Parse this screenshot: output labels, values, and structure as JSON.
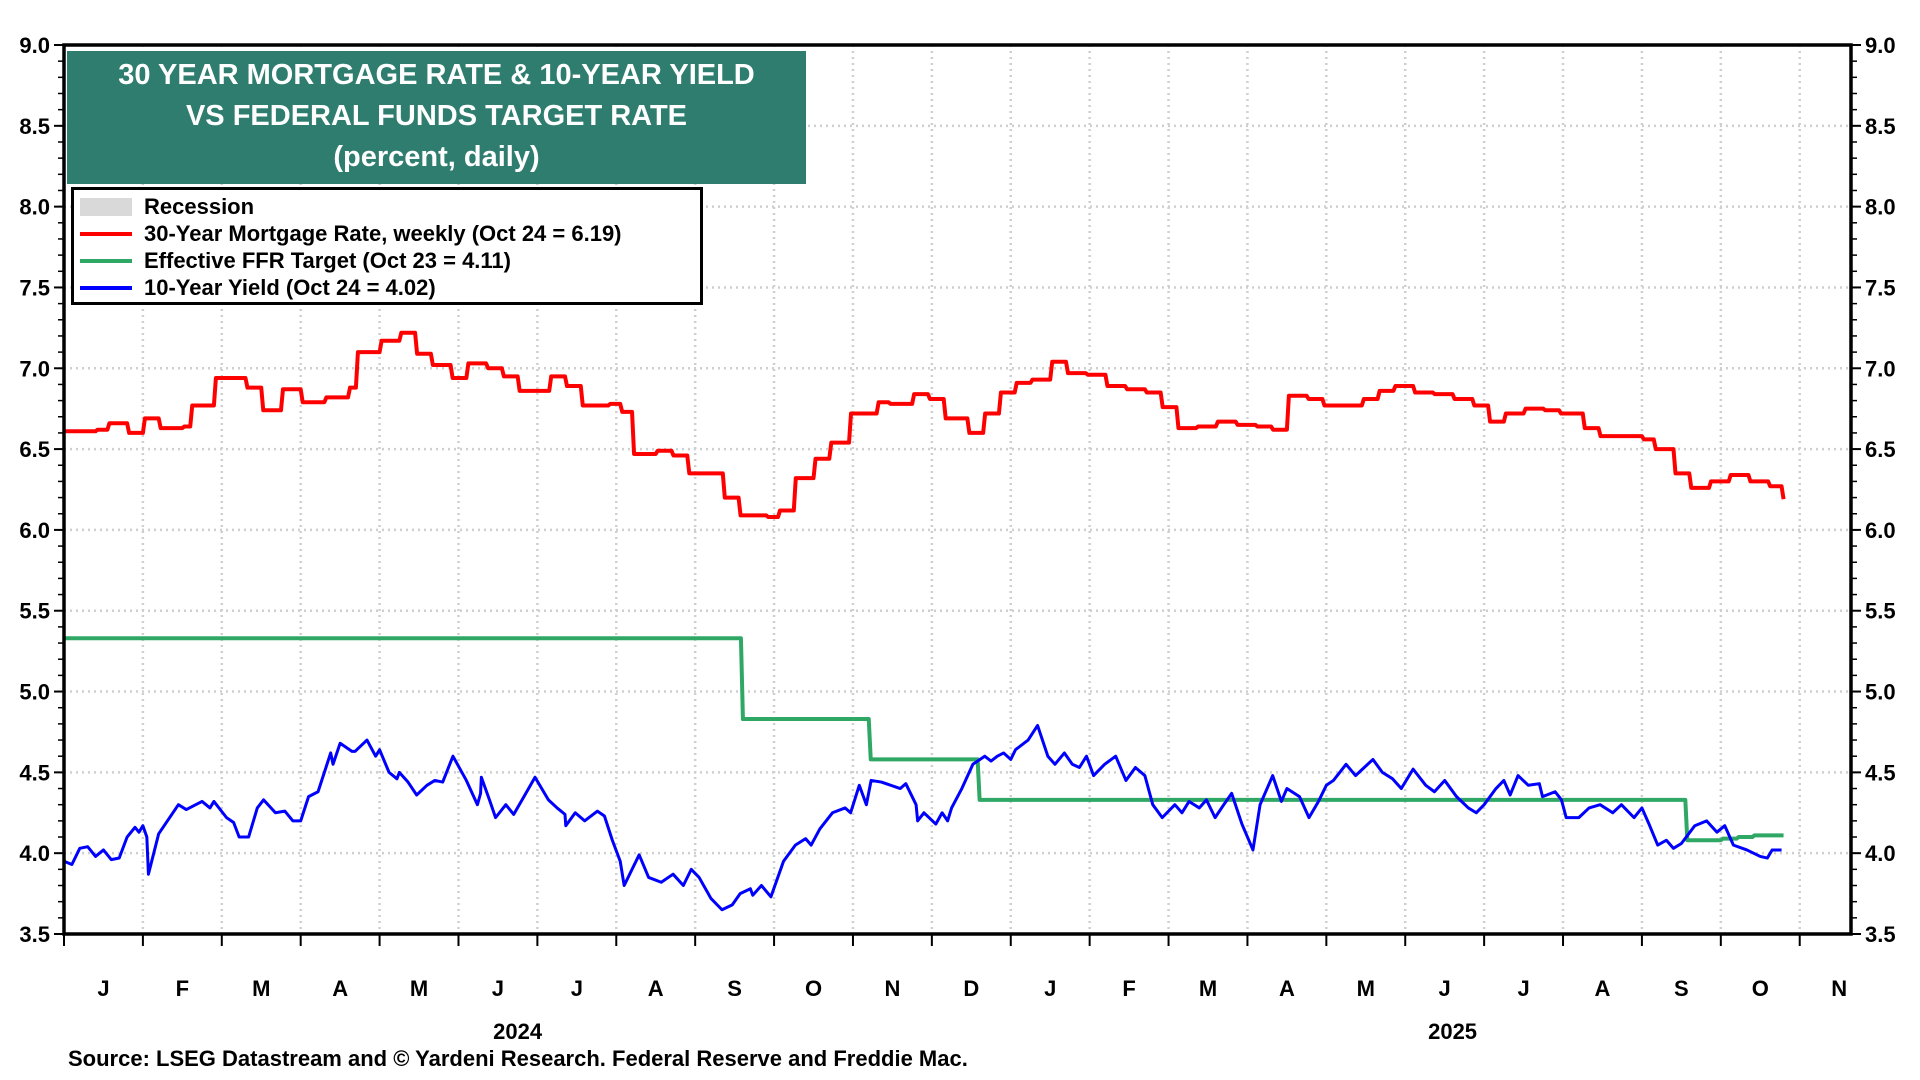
{
  "chart_data": {
    "type": "line",
    "title": [
      "30 YEAR MORTGAGE RATE & 10-YEAR YIELD",
      "VS FEDERAL FUNDS TARGET RATE",
      "(percent, daily)"
    ],
    "x_unit": "months since Jan 2024",
    "xlim": [
      0,
      22.65
    ],
    "ylim": [
      3.5,
      9.0
    ],
    "y_ticks": [
      "3.5",
      "4.0",
      "4.5",
      "5.0",
      "5.5",
      "6.0",
      "6.5",
      "7.0",
      "7.5",
      "8.0",
      "8.5",
      "9.0"
    ],
    "x_month_labels": [
      "J",
      "F",
      "M",
      "A",
      "M",
      "J",
      "J",
      "A",
      "S",
      "O",
      "N",
      "D",
      "J",
      "F",
      "M",
      "A",
      "M",
      "J",
      "J",
      "A",
      "S",
      "O",
      "N"
    ],
    "x_year_labels": [
      {
        "label": "2024",
        "at": 5.75
      },
      {
        "label": "2025",
        "at": 17.6
      }
    ],
    "grid": true,
    "legend_placement": "top-left",
    "legend": [
      {
        "label": "Recession",
        "kind": "area",
        "color": "#d9d9d9"
      },
      {
        "label": "30-Year Mortgage Rate, weekly (Oct 24 = 6.19)",
        "color": "#ff0000"
      },
      {
        "label": "Effective FFR Target (Oct 23 = 4.11)",
        "color": "#2fa866"
      },
      {
        "label": "10-Year Yield (Oct 24 = 4.02)",
        "color": "#0000ff"
      }
    ],
    "series": [
      {
        "name": "30-Year Mortgage Rate, weekly",
        "color": "#ff0000",
        "step": true,
        "points": [
          [
            0,
            6.61
          ],
          [
            0.4,
            6.62
          ],
          [
            0.55,
            6.66
          ],
          [
            0.8,
            6.6
          ],
          [
            1.0,
            6.69
          ],
          [
            1.2,
            6.63
          ],
          [
            1.5,
            6.64
          ],
          [
            1.6,
            6.77
          ],
          [
            1.9,
            6.94
          ],
          [
            2.3,
            6.88
          ],
          [
            2.5,
            6.74
          ],
          [
            2.75,
            6.87
          ],
          [
            3.0,
            6.79
          ],
          [
            3.3,
            6.82
          ],
          [
            3.6,
            6.88
          ],
          [
            3.7,
            7.1
          ],
          [
            4.0,
            7.17
          ],
          [
            4.25,
            7.22
          ],
          [
            4.45,
            7.09
          ],
          [
            4.65,
            7.02
          ],
          [
            4.9,
            6.94
          ],
          [
            5.1,
            7.03
          ],
          [
            5.35,
            7.0
          ],
          [
            5.55,
            6.95
          ],
          [
            5.75,
            6.86
          ],
          [
            6.15,
            6.95
          ],
          [
            6.35,
            6.89
          ],
          [
            6.55,
            6.77
          ],
          [
            6.9,
            6.78
          ],
          [
            7.05,
            6.73
          ],
          [
            7.2,
            6.47
          ],
          [
            7.5,
            6.49
          ],
          [
            7.7,
            6.46
          ],
          [
            7.9,
            6.35
          ],
          [
            8.35,
            6.2
          ],
          [
            8.55,
            6.09
          ],
          [
            8.9,
            6.08
          ],
          [
            9.05,
            6.12
          ],
          [
            9.25,
            6.32
          ],
          [
            9.5,
            6.44
          ],
          [
            9.7,
            6.54
          ],
          [
            9.95,
            6.72
          ],
          [
            10.3,
            6.79
          ],
          [
            10.45,
            6.78
          ],
          [
            10.75,
            6.84
          ],
          [
            10.95,
            6.81
          ],
          [
            11.15,
            6.69
          ],
          [
            11.45,
            6.6
          ],
          [
            11.65,
            6.72
          ],
          [
            11.85,
            6.85
          ],
          [
            12.05,
            6.91
          ],
          [
            12.25,
            6.93
          ],
          [
            12.5,
            7.04
          ],
          [
            12.7,
            6.97
          ],
          [
            12.95,
            6.96
          ],
          [
            13.2,
            6.89
          ],
          [
            13.45,
            6.87
          ],
          [
            13.7,
            6.85
          ],
          [
            13.9,
            6.76
          ],
          [
            14.1,
            6.63
          ],
          [
            14.35,
            6.64
          ],
          [
            14.6,
            6.67
          ],
          [
            14.85,
            6.65
          ],
          [
            15.1,
            6.64
          ],
          [
            15.3,
            6.62
          ],
          [
            15.5,
            6.83
          ],
          [
            15.75,
            6.81
          ],
          [
            15.95,
            6.77
          ],
          [
            16.45,
            6.81
          ],
          [
            16.65,
            6.86
          ],
          [
            16.85,
            6.89
          ],
          [
            17.1,
            6.85
          ],
          [
            17.35,
            6.84
          ],
          [
            17.6,
            6.81
          ],
          [
            17.85,
            6.77
          ],
          [
            18.05,
            6.67
          ],
          [
            18.25,
            6.72
          ],
          [
            18.5,
            6.75
          ],
          [
            18.75,
            6.74
          ],
          [
            18.95,
            6.72
          ],
          [
            19.25,
            6.63
          ],
          [
            19.45,
            6.58
          ],
          [
            20.0,
            6.56
          ],
          [
            20.15,
            6.5
          ],
          [
            20.4,
            6.35
          ],
          [
            20.6,
            6.26
          ],
          [
            20.85,
            6.3
          ],
          [
            21.1,
            6.34
          ],
          [
            21.35,
            6.3
          ],
          [
            21.6,
            6.27
          ],
          [
            21.77,
            6.19
          ]
        ]
      },
      {
        "name": "Effective FFR Target",
        "color": "#2fa866",
        "step": true,
        "points": [
          [
            0,
            5.33
          ],
          [
            8.58,
            4.83
          ],
          [
            10.2,
            4.58
          ],
          [
            11.58,
            4.33
          ],
          [
            20.55,
            4.08
          ],
          [
            21.0,
            4.09
          ],
          [
            21.2,
            4.1
          ],
          [
            21.4,
            4.11
          ],
          [
            21.77,
            4.11
          ]
        ]
      },
      {
        "name": "10-Year Yield",
        "color": "#0000ff",
        "step": false,
        "points": [
          [
            0,
            3.95
          ],
          [
            0.1,
            3.93
          ],
          [
            0.2,
            4.03
          ],
          [
            0.3,
            4.04
          ],
          [
            0.4,
            3.98
          ],
          [
            0.5,
            4.02
          ],
          [
            0.6,
            3.96
          ],
          [
            0.7,
            3.97
          ],
          [
            0.8,
            4.1
          ],
          [
            0.9,
            4.16
          ],
          [
            0.95,
            4.13
          ],
          [
            1.0,
            4.17
          ],
          [
            1.05,
            4.1
          ],
          [
            1.07,
            3.87
          ],
          [
            1.2,
            4.12
          ],
          [
            1.45,
            4.3
          ],
          [
            1.55,
            4.27
          ],
          [
            1.75,
            4.32
          ],
          [
            1.85,
            4.28
          ],
          [
            1.9,
            4.32
          ],
          [
            2.06,
            4.22
          ],
          [
            2.15,
            4.19
          ],
          [
            2.22,
            4.1
          ],
          [
            2.34,
            4.1
          ],
          [
            2.45,
            4.28
          ],
          [
            2.53,
            4.33
          ],
          [
            2.68,
            4.25
          ],
          [
            2.8,
            4.26
          ],
          [
            2.9,
            4.2
          ],
          [
            3.0,
            4.2
          ],
          [
            3.1,
            4.35
          ],
          [
            3.22,
            4.38
          ],
          [
            3.3,
            4.5
          ],
          [
            3.38,
            4.62
          ],
          [
            3.41,
            4.55
          ],
          [
            3.5,
            4.68
          ],
          [
            3.65,
            4.63
          ],
          [
            3.69,
            4.63
          ],
          [
            3.84,
            4.7
          ],
          [
            3.95,
            4.6
          ],
          [
            4.0,
            4.64
          ],
          [
            4.12,
            4.5
          ],
          [
            4.22,
            4.46
          ],
          [
            4.25,
            4.5
          ],
          [
            4.36,
            4.44
          ],
          [
            4.47,
            4.36
          ],
          [
            4.6,
            4.42
          ],
          [
            4.7,
            4.45
          ],
          [
            4.8,
            4.44
          ],
          [
            4.93,
            4.6
          ],
          [
            5.1,
            4.45
          ],
          [
            5.24,
            4.3
          ],
          [
            5.28,
            4.37
          ],
          [
            5.29,
            4.47
          ],
          [
            5.4,
            4.32
          ],
          [
            5.47,
            4.22
          ],
          [
            5.6,
            4.3
          ],
          [
            5.7,
            4.24
          ],
          [
            5.83,
            4.35
          ],
          [
            5.97,
            4.47
          ],
          [
            6.14,
            4.33
          ],
          [
            6.25,
            4.28
          ],
          [
            6.35,
            4.24
          ],
          [
            6.36,
            4.17
          ],
          [
            6.48,
            4.25
          ],
          [
            6.6,
            4.2
          ],
          [
            6.76,
            4.26
          ],
          [
            6.85,
            4.23
          ],
          [
            6.95,
            4.08
          ],
          [
            7.05,
            3.95
          ],
          [
            7.1,
            3.8
          ],
          [
            7.18,
            3.88
          ],
          [
            7.29,
            3.99
          ],
          [
            7.41,
            3.85
          ],
          [
            7.57,
            3.82
          ],
          [
            7.72,
            3.87
          ],
          [
            7.85,
            3.8
          ],
          [
            7.95,
            3.9
          ],
          [
            8.05,
            3.85
          ],
          [
            8.2,
            3.72
          ],
          [
            8.34,
            3.65
          ],
          [
            8.47,
            3.68
          ],
          [
            8.57,
            3.75
          ],
          [
            8.7,
            3.78
          ],
          [
            8.73,
            3.74
          ],
          [
            8.84,
            3.8
          ],
          [
            8.96,
            3.73
          ],
          [
            9.12,
            3.95
          ],
          [
            9.27,
            4.05
          ],
          [
            9.4,
            4.09
          ],
          [
            9.47,
            4.05
          ],
          [
            9.58,
            4.15
          ],
          [
            9.74,
            4.25
          ],
          [
            9.9,
            4.28
          ],
          [
            9.97,
            4.25
          ],
          [
            10.08,
            4.42
          ],
          [
            10.17,
            4.3
          ],
          [
            10.23,
            4.45
          ],
          [
            10.36,
            4.44
          ],
          [
            10.6,
            4.4
          ],
          [
            10.67,
            4.43
          ],
          [
            10.8,
            4.3
          ],
          [
            10.82,
            4.2
          ],
          [
            10.9,
            4.25
          ],
          [
            11.05,
            4.18
          ],
          [
            11.13,
            4.25
          ],
          [
            11.2,
            4.2
          ],
          [
            11.25,
            4.28
          ],
          [
            11.38,
            4.4
          ],
          [
            11.52,
            4.55
          ],
          [
            11.67,
            4.6
          ],
          [
            11.75,
            4.57
          ],
          [
            11.83,
            4.6
          ],
          [
            11.91,
            4.62
          ],
          [
            12.0,
            4.58
          ],
          [
            12.06,
            4.64
          ],
          [
            12.22,
            4.7
          ],
          [
            12.34,
            4.79
          ],
          [
            12.47,
            4.6
          ],
          [
            12.56,
            4.55
          ],
          [
            12.68,
            4.62
          ],
          [
            12.78,
            4.55
          ],
          [
            12.87,
            4.53
          ],
          [
            12.96,
            4.6
          ],
          [
            13.05,
            4.48
          ],
          [
            13.19,
            4.55
          ],
          [
            13.33,
            4.6
          ],
          [
            13.46,
            4.45
          ],
          [
            13.58,
            4.53
          ],
          [
            13.7,
            4.48
          ],
          [
            13.8,
            4.3
          ],
          [
            13.92,
            4.22
          ],
          [
            14.08,
            4.3
          ],
          [
            14.17,
            4.25
          ],
          [
            14.26,
            4.32
          ],
          [
            14.39,
            4.28
          ],
          [
            14.48,
            4.33
          ],
          [
            14.59,
            4.22
          ],
          [
            14.7,
            4.3
          ],
          [
            14.8,
            4.37
          ],
          [
            14.93,
            4.18
          ],
          [
            15.07,
            4.02
          ],
          [
            15.16,
            4.3
          ],
          [
            15.32,
            4.48
          ],
          [
            15.43,
            4.32
          ],
          [
            15.5,
            4.4
          ],
          [
            15.66,
            4.35
          ],
          [
            15.78,
            4.22
          ],
          [
            15.9,
            4.32
          ],
          [
            16.0,
            4.42
          ],
          [
            16.09,
            4.45
          ],
          [
            16.25,
            4.55
          ],
          [
            16.37,
            4.48
          ],
          [
            16.59,
            4.58
          ],
          [
            16.71,
            4.5
          ],
          [
            16.84,
            4.46
          ],
          [
            16.95,
            4.4
          ],
          [
            17.1,
            4.52
          ],
          [
            17.26,
            4.42
          ],
          [
            17.37,
            4.38
          ],
          [
            17.5,
            4.45
          ],
          [
            17.65,
            4.35
          ],
          [
            17.8,
            4.28
          ],
          [
            17.9,
            4.25
          ],
          [
            18.0,
            4.3
          ],
          [
            18.15,
            4.4
          ],
          [
            18.25,
            4.45
          ],
          [
            18.33,
            4.36
          ],
          [
            18.43,
            4.48
          ],
          [
            18.56,
            4.42
          ],
          [
            18.7,
            4.43
          ],
          [
            18.74,
            4.35
          ],
          [
            18.9,
            4.38
          ],
          [
            18.98,
            4.33
          ],
          [
            19.04,
            4.22
          ],
          [
            19.2,
            4.22
          ],
          [
            19.33,
            4.28
          ],
          [
            19.47,
            4.3
          ],
          [
            19.63,
            4.25
          ],
          [
            19.74,
            4.3
          ],
          [
            19.9,
            4.22
          ],
          [
            20.0,
            4.28
          ],
          [
            20.09,
            4.18
          ],
          [
            20.2,
            4.05
          ],
          [
            20.31,
            4.08
          ],
          [
            20.4,
            4.03
          ],
          [
            20.5,
            4.06
          ],
          [
            20.67,
            4.17
          ],
          [
            20.82,
            4.2
          ],
          [
            20.95,
            4.13
          ],
          [
            21.05,
            4.17
          ],
          [
            21.16,
            4.05
          ],
          [
            21.33,
            4.02
          ],
          [
            21.5,
            3.98
          ],
          [
            21.59,
            3.97
          ],
          [
            21.65,
            4.02
          ],
          [
            21.77,
            4.02
          ]
        ]
      }
    ],
    "source": "Source: LSEG Datastream and © Yardeni Research. Federal Reserve and Freddie Mac."
  }
}
